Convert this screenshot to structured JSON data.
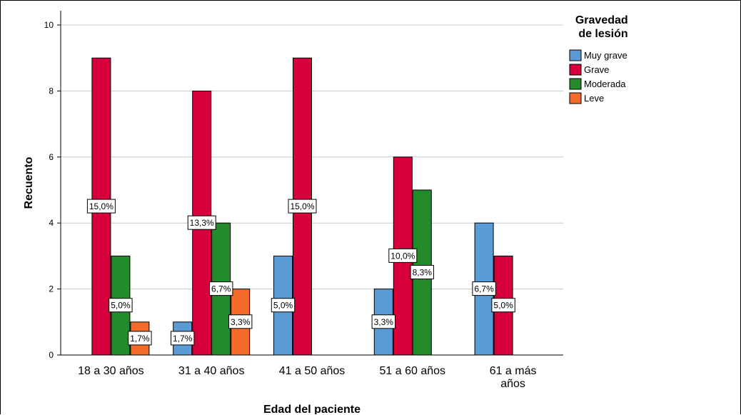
{
  "chart_data": {
    "type": "bar",
    "title": "",
    "xlabel": "Edad del paciente",
    "ylabel": "Recuento",
    "ylim": [
      0,
      10
    ],
    "yticks": [
      0,
      2,
      4,
      6,
      8,
      10
    ],
    "grid": true,
    "legend_position": "top-right",
    "legend_title": "Gravedad de lesión",
    "categories": [
      [
        "18 a 30 años"
      ],
      [
        "31 a 40 años"
      ],
      [
        "41 a 50 años"
      ],
      [
        "51 a 60 años"
      ],
      [
        "61 a más",
        "años"
      ]
    ],
    "series": [
      {
        "name": "Muy grave",
        "color": "#5b9bd5",
        "values": [
          0,
          1,
          3,
          2,
          4
        ],
        "labels": [
          "",
          "1,7%",
          "5,0%",
          "3,3%",
          "6,7%"
        ]
      },
      {
        "name": "Grave",
        "color": "#d6003a",
        "values": [
          9,
          8,
          9,
          6,
          3
        ],
        "labels": [
          "15,0%",
          "13,3%",
          "15,0%",
          "10,0%",
          "5,0%"
        ]
      },
      {
        "name": "Moderada",
        "color": "#238b2c",
        "values": [
          3,
          4,
          0,
          5,
          0
        ],
        "labels": [
          "5,0%",
          "6,7%",
          "",
          "8,3%",
          ""
        ]
      },
      {
        "name": "Leve",
        "color": "#f26b2a",
        "values": [
          1,
          2,
          0,
          0,
          0
        ],
        "labels": [
          "1,7%",
          "3,3%",
          "",
          "",
          ""
        ]
      }
    ]
  }
}
